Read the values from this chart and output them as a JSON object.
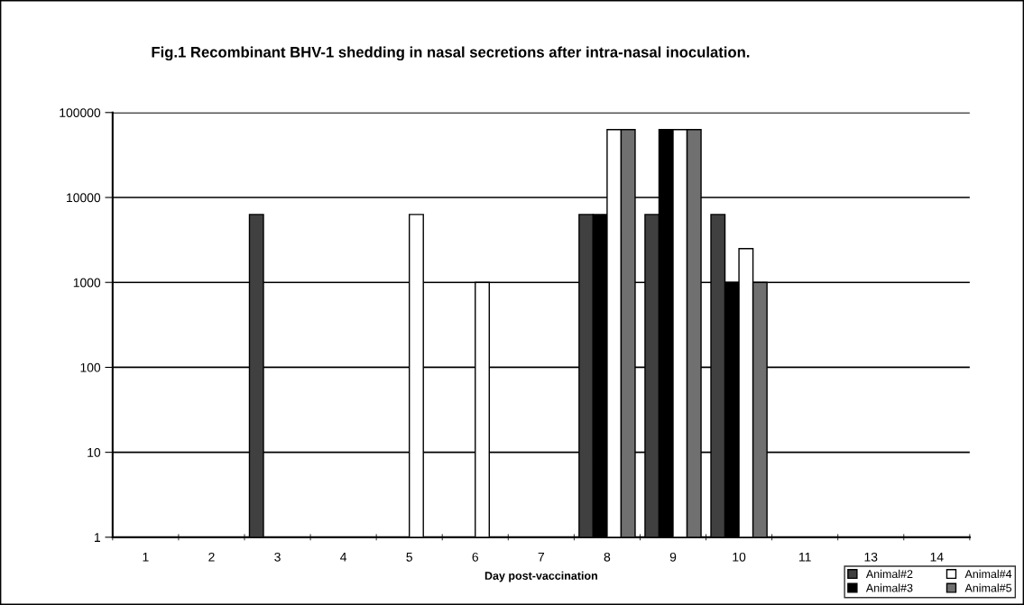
{
  "chart_data": {
    "type": "bar",
    "title": "Fig.1 Recombinant BHV-1 shedding in nasal secretions after intra-nasal inoculation.",
    "xlabel": "Day post-vaccination",
    "categories": [
      "1",
      "2",
      "3",
      "4",
      "5",
      "6",
      "7",
      "8",
      "9",
      "10",
      "11",
      "13",
      "14"
    ],
    "series": [
      {
        "name": "Animal#2",
        "color": "#404040",
        "values": [
          null,
          null,
          6300,
          null,
          null,
          null,
          null,
          6300,
          6300,
          6300,
          null,
          null,
          null
        ]
      },
      {
        "name": "Animal#3",
        "color": "#000000",
        "values": [
          null,
          null,
          null,
          null,
          null,
          null,
          null,
          6300,
          63000,
          1000,
          null,
          null,
          null
        ]
      },
      {
        "name": "Animal#4",
        "color": "#ffffff",
        "values": [
          null,
          null,
          null,
          null,
          6300,
          1000,
          null,
          63000,
          63000,
          2500,
          null,
          null,
          null
        ]
      },
      {
        "name": "Animal#5",
        "color": "#707070",
        "values": [
          null,
          null,
          null,
          null,
          null,
          null,
          null,
          63000,
          63000,
          1000,
          null,
          null,
          null
        ]
      }
    ],
    "log": true,
    "ylim": [
      1,
      100000
    ],
    "yticks": [
      1,
      10,
      100,
      1000,
      10000,
      100000
    ],
    "grid": "y",
    "legend": "bottom right"
  }
}
